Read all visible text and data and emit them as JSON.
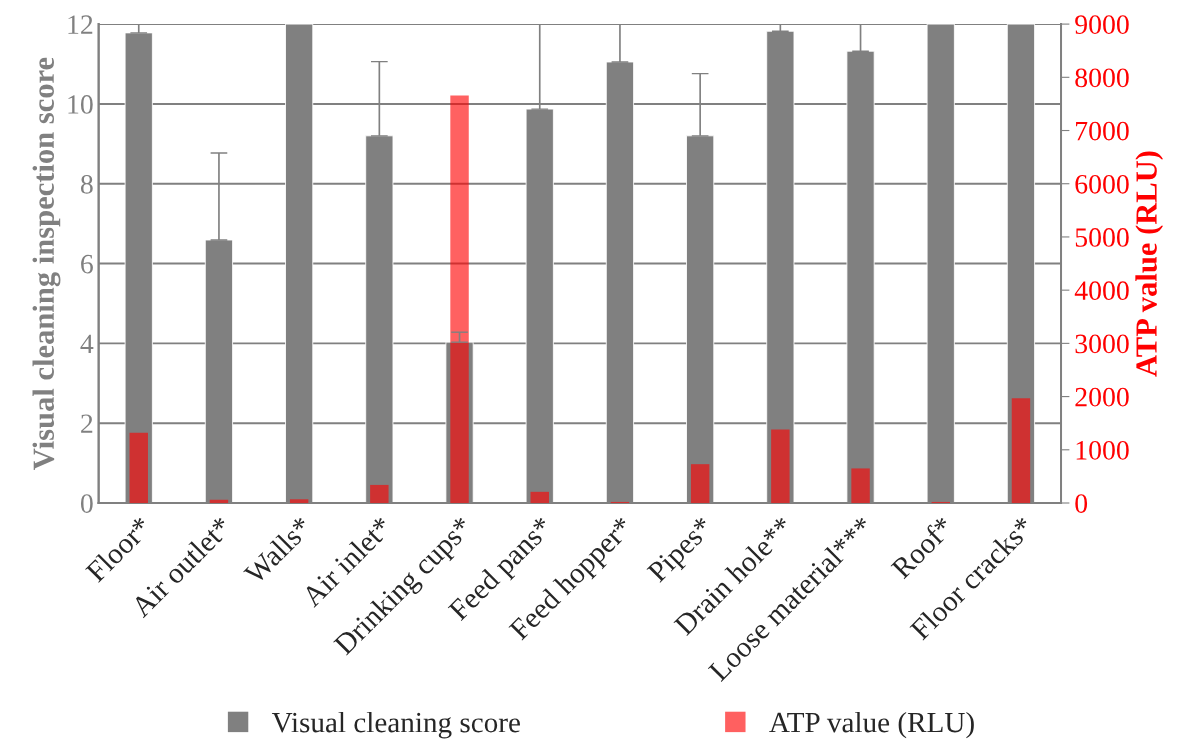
{
  "chart_data": {
    "type": "bar",
    "ylabel": "Visual cleaning inspection score",
    "y2label": "ATP value (RLU)",
    "categories": [
      "Floor*",
      "Air outlet*",
      "Walls*",
      "Air inlet*",
      "Drinking cups*",
      "Feed pans*",
      "Feed hopper*",
      "Pipes*",
      "Drain hole**",
      "Loose material***",
      "Roof*",
      "Floor cracks*"
    ],
    "series": [
      {
        "name": "Visual cleaning score",
        "color": "#808080",
        "values": [
          11.78,
          6.59,
          12,
          9.2,
          4.03,
          9.87,
          11.05,
          9.2,
          11.82,
          11.32,
          12,
          12
        ],
        "errors": [
          [
            11.78,
            12
          ],
          [
            6.59,
            8.77
          ],
          null,
          [
            9.2,
            11.06
          ],
          [
            4.03,
            4.28
          ],
          [
            9.87,
            12
          ],
          [
            11.05,
            12
          ],
          [
            9.2,
            10.76
          ],
          [
            11.82,
            12
          ],
          [
            11.32,
            12
          ],
          null,
          null
        ]
      },
      {
        "name": "ATP value (RLU)",
        "color": "#ff6060",
        "axis": "y2",
        "values": [
          1320,
          60,
          70,
          340,
          7660,
          210,
          20,
          730,
          1380,
          650,
          20,
          1970
        ]
      }
    ],
    "ylim": [
      0,
      12
    ],
    "yticks": [
      0,
      2,
      4,
      6,
      8,
      10,
      12
    ],
    "y2lim": [
      0,
      9000
    ],
    "y2ticks": [
      0,
      1000,
      2000,
      3000,
      4000,
      5000,
      6000,
      7000,
      8000,
      9000
    ],
    "grid": "y",
    "legend": "bottom"
  }
}
